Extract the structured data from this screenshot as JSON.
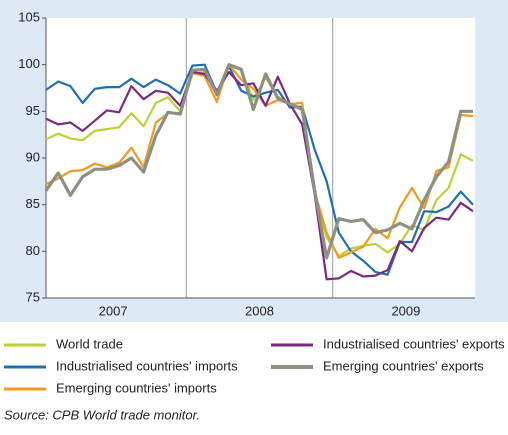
{
  "chart_data": {
    "type": "line",
    "year_labels": [
      "2007",
      "2008",
      "2009"
    ],
    "categories": [
      null,
      null,
      null,
      null,
      null,
      null,
      null,
      null,
      null,
      null,
      null,
      null,
      null,
      null,
      null,
      null,
      null,
      null,
      null,
      null,
      null,
      null,
      null,
      null,
      null,
      null,
      null,
      null,
      null,
      null,
      null,
      null,
      null,
      null,
      null,
      null
    ],
    "ylim": [
      75,
      105
    ],
    "yticks": [
      75,
      80,
      85,
      90,
      95,
      100,
      105
    ],
    "series": [
      {
        "name": "World trade",
        "color": "#b8d432",
        "values": [
          92.0,
          92.6,
          92.1,
          91.9,
          92.9,
          93.1,
          93.3,
          94.8,
          93.4,
          95.9,
          96.5,
          95.0,
          99.0,
          99.2,
          97.0,
          100.0,
          99.4,
          96.2,
          98.6,
          96.6,
          95.8,
          95.4,
          86.5,
          81.5,
          79.5,
          80.3,
          80.6,
          80.8,
          79.9,
          80.8,
          82.8,
          82.3,
          85.5,
          86.8,
          90.4,
          89.7
        ]
      },
      {
        "name": "Industrialised countries' imports",
        "color": "#1f6fb5",
        "values": [
          97.3,
          98.2,
          97.7,
          95.9,
          97.4,
          97.6,
          97.6,
          98.5,
          97.6,
          98.4,
          97.8,
          96.9,
          99.9,
          100.0,
          97.0,
          99.8,
          97.2,
          96.6,
          97.0,
          97.3,
          95.4,
          95.5,
          91.0,
          87.5,
          82.0,
          80.0,
          79.0,
          77.8,
          77.5,
          81.0,
          81.0,
          84.3,
          84.2,
          84.8,
          86.4,
          85.0
        ]
      },
      {
        "name": "Emerging countries' imports",
        "color": "#f39a1e",
        "values": [
          87.2,
          87.8,
          88.6,
          88.7,
          89.4,
          89.0,
          89.5,
          91.1,
          89.0,
          93.8,
          94.8,
          94.8,
          99.1,
          98.8,
          96.0,
          100.0,
          98.4,
          97.4,
          95.6,
          96.2,
          95.8,
          95.9,
          86.5,
          82.0,
          79.3,
          79.9,
          80.5,
          82.4,
          81.4,
          84.7,
          86.8,
          84.6,
          88.6,
          89.0,
          94.6,
          94.5
        ]
      },
      {
        "name": "Industrialised countries' exports",
        "color": "#7b2a7f",
        "values": [
          94.2,
          93.6,
          93.8,
          92.9,
          94.0,
          95.1,
          94.9,
          97.7,
          96.3,
          97.2,
          97.0,
          95.6,
          99.2,
          99.0,
          97.2,
          99.2,
          97.8,
          98.0,
          95.6,
          98.7,
          95.8,
          93.6,
          86.3,
          77.0,
          77.1,
          77.9,
          77.3,
          77.4,
          78.0,
          81.1,
          80.0,
          82.5,
          83.6,
          83.4,
          85.2,
          84.3
        ]
      },
      {
        "name": "Emerging countries' exports",
        "color": "#8c9183",
        "values": [
          86.5,
          88.4,
          86.0,
          88.0,
          88.8,
          88.8,
          89.2,
          90.0,
          88.5,
          92.4,
          94.9,
          94.7,
          99.4,
          99.5,
          96.8,
          100.0,
          99.5,
          95.2,
          99.0,
          96.4,
          95.8,
          95.2,
          86.7,
          79.3,
          83.5,
          83.2,
          83.4,
          82.0,
          82.3,
          83.0,
          82.4,
          85.5,
          88.0,
          89.6,
          95.0,
          95.0
        ]
      }
    ],
    "source": "Source: CPB World trade monitor."
  }
}
